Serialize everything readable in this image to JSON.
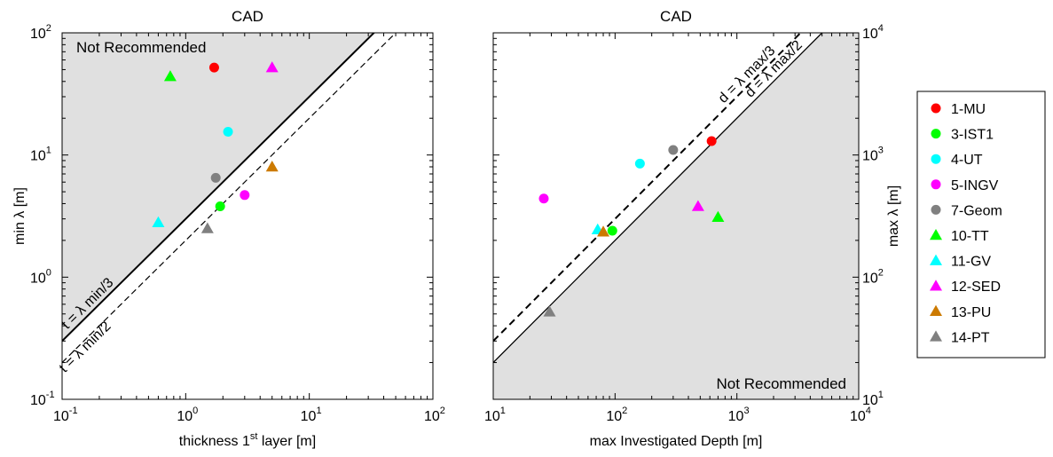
{
  "chart_data": [
    {
      "type": "scatter",
      "title": "CAD",
      "xlabel": "thickness 1",
      "xlabel_sup": "st",
      "xlabel_tail": " layer [m]",
      "ylabel": "min λ [m]",
      "xscale": "log",
      "yscale": "log",
      "xlim": [
        0.1,
        100
      ],
      "ylim": [
        0.1,
        100
      ],
      "x_ticks": [
        {
          "base": "10",
          "exp": "-1"
        },
        {
          "base": "10",
          "exp": "0"
        },
        {
          "base": "10",
          "exp": "1"
        },
        {
          "base": "10",
          "exp": "2"
        }
      ],
      "y_ticks": [
        {
          "base": "10",
          "exp": "-1"
        },
        {
          "base": "10",
          "exp": "0"
        },
        {
          "base": "10",
          "exp": "1"
        },
        {
          "base": "10",
          "exp": "2"
        }
      ],
      "region_label": "Not Recommended",
      "region_color": "#e0e0e0",
      "reference_lines": [
        {
          "label": "t = λ min/3",
          "style": "solid",
          "ratio": 3
        },
        {
          "label": "t = λ min/2",
          "style": "dashed",
          "ratio": 2
        }
      ],
      "points": [
        {
          "series": "1-MU",
          "x": 1.7,
          "y": 52
        },
        {
          "series": "3-IST1",
          "x": 1.9,
          "y": 3.8
        },
        {
          "series": "4-UT",
          "x": 2.2,
          "y": 15.5
        },
        {
          "series": "5-INGV",
          "x": 3.0,
          "y": 4.7
        },
        {
          "series": "7-Geom",
          "x": 1.75,
          "y": 6.5
        },
        {
          "series": "10-TT",
          "x": 0.75,
          "y": 44
        },
        {
          "series": "11-GV",
          "x": 0.6,
          "y": 2.8
        },
        {
          "series": "12-SED",
          "x": 5.0,
          "y": 52
        },
        {
          "series": "13-PU",
          "x": 5.0,
          "y": 8.0
        },
        {
          "series": "14-PT",
          "x": 1.5,
          "y": 2.5
        }
      ]
    },
    {
      "type": "scatter",
      "title": "CAD",
      "xlabel": "max Investigated Depth [m]",
      "ylabel": "max λ [m]",
      "xscale": "log",
      "yscale": "log",
      "xlim": [
        10,
        10000
      ],
      "ylim": [
        10,
        10000
      ],
      "x_ticks": [
        {
          "base": "10",
          "exp": "1"
        },
        {
          "base": "10",
          "exp": "2"
        },
        {
          "base": "10",
          "exp": "3"
        },
        {
          "base": "10",
          "exp": "4"
        }
      ],
      "y_ticks": [
        {
          "base": "10",
          "exp": "1"
        },
        {
          "base": "10",
          "exp": "2"
        },
        {
          "base": "10",
          "exp": "3"
        },
        {
          "base": "10",
          "exp": "4"
        }
      ],
      "region_label": "Not Recommended",
      "region_color": "#e0e0e0",
      "reference_lines": [
        {
          "label": "d = λ max/3",
          "style": "dashed",
          "ratio": 3
        },
        {
          "label": "d = λ max/2",
          "style": "solid",
          "ratio": 2
        }
      ],
      "points": [
        {
          "series": "1-MU",
          "x": 620,
          "y": 1300
        },
        {
          "series": "3-IST1",
          "x": 95,
          "y": 240
        },
        {
          "series": "4-UT",
          "x": 160,
          "y": 850
        },
        {
          "series": "5-INGV",
          "x": 26,
          "y": 440
        },
        {
          "series": "7-Geom",
          "x": 300,
          "y": 1100
        },
        {
          "series": "10-TT",
          "x": 700,
          "y": 310
        },
        {
          "series": "11-GV",
          "x": 72,
          "y": 245
        },
        {
          "series": "12-SED",
          "x": 480,
          "y": 380
        },
        {
          "series": "13-PU",
          "x": 80,
          "y": 235
        },
        {
          "series": "14-PT",
          "x": 29,
          "y": 52
        }
      ]
    }
  ],
  "legend": {
    "placement": "right",
    "items": [
      {
        "name": "1-MU",
        "color": "#ff0000",
        "marker": "circle"
      },
      {
        "name": "3-IST1",
        "color": "#00ff00",
        "marker": "circle"
      },
      {
        "name": "4-UT",
        "color": "#00ffff",
        "marker": "circle"
      },
      {
        "name": "5-INGV",
        "color": "#ff00ff",
        "marker": "circle"
      },
      {
        "name": "7-Geom",
        "color": "#808080",
        "marker": "circle"
      },
      {
        "name": "10-TT",
        "color": "#00ff00",
        "marker": "triangle"
      },
      {
        "name": "11-GV",
        "color": "#00ffff",
        "marker": "triangle"
      },
      {
        "name": "12-SED",
        "color": "#ff00ff",
        "marker": "triangle"
      },
      {
        "name": "13-PU",
        "color": "#cc7a00",
        "marker": "triangle"
      },
      {
        "name": "14-PT",
        "color": "#808080",
        "marker": "triangle"
      }
    ]
  }
}
